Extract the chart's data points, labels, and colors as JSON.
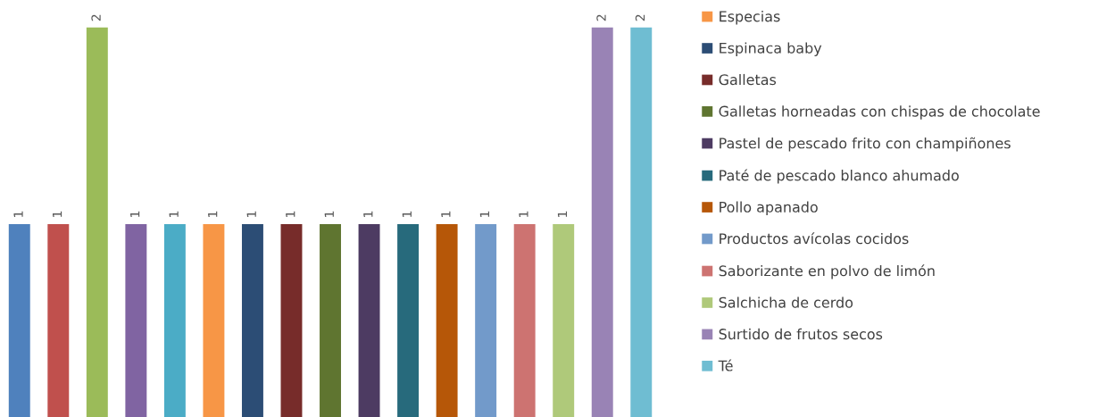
{
  "chart_data": {
    "type": "bar",
    "stacked": true,
    "categories": [
      null,
      null,
      null,
      null,
      null,
      null,
      null,
      null,
      null,
      null,
      null,
      null,
      null,
      null,
      null,
      null,
      null
    ],
    "data_labels": true,
    "legend": "right",
    "grid": false,
    "series": [
      {
        "color": "#4f81bd",
        "values": [
          1,
          null,
          null,
          null,
          null,
          null,
          null,
          null,
          null,
          null,
          null,
          null,
          null,
          null,
          null,
          null,
          null
        ]
      },
      {
        "color": "#c0504d",
        "values": [
          null,
          1,
          null,
          null,
          null,
          null,
          null,
          null,
          null,
          null,
          null,
          null,
          null,
          null,
          null,
          null,
          null
        ]
      },
      {
        "color": "#9bbb59",
        "values": [
          null,
          null,
          2,
          null,
          null,
          null,
          null,
          null,
          null,
          null,
          null,
          null,
          null,
          null,
          null,
          null,
          null
        ]
      },
      {
        "color": "#8064a2",
        "values": [
          null,
          null,
          null,
          1,
          null,
          null,
          null,
          null,
          null,
          null,
          null,
          null,
          null,
          null,
          null,
          null,
          null
        ]
      },
      {
        "color": "#4bacc6",
        "values": [
          null,
          null,
          null,
          null,
          1,
          null,
          null,
          null,
          null,
          null,
          null,
          null,
          null,
          null,
          null,
          null,
          null
        ]
      },
      {
        "name": "Especias",
        "color": "#f79646",
        "values": [
          null,
          null,
          null,
          null,
          null,
          1,
          null,
          null,
          null,
          null,
          null,
          null,
          null,
          null,
          null,
          null,
          null
        ]
      },
      {
        "name": "Espinaca baby",
        "color": "#2c4d75",
        "values": [
          null,
          null,
          null,
          null,
          null,
          null,
          1,
          null,
          null,
          null,
          null,
          null,
          null,
          null,
          null,
          null,
          null
        ]
      },
      {
        "name": "Galletas",
        "color": "#772c2a",
        "values": [
          null,
          null,
          null,
          null,
          null,
          null,
          null,
          1,
          null,
          null,
          null,
          null,
          null,
          null,
          null,
          null,
          null
        ]
      },
      {
        "name": "Galletas horneadas con chispas de chocolate",
        "color": "#5f7530",
        "values": [
          null,
          null,
          null,
          null,
          null,
          null,
          null,
          null,
          1,
          null,
          null,
          null,
          null,
          null,
          null,
          null,
          null
        ]
      },
      {
        "name": "Pastel de pescado frito con champiñones",
        "color": "#4d3b62",
        "values": [
          null,
          null,
          null,
          null,
          null,
          null,
          null,
          null,
          null,
          1,
          null,
          null,
          null,
          null,
          null,
          null,
          null
        ]
      },
      {
        "name": "Paté de pescado blanco ahumado",
        "color": "#276a7c",
        "values": [
          null,
          null,
          null,
          null,
          null,
          null,
          null,
          null,
          null,
          null,
          1,
          null,
          null,
          null,
          null,
          null,
          null
        ]
      },
      {
        "name": "Pollo apanado",
        "color": "#b65708",
        "values": [
          null,
          null,
          null,
          null,
          null,
          null,
          null,
          null,
          null,
          null,
          null,
          1,
          null,
          null,
          null,
          null,
          null
        ]
      },
      {
        "name": "Productos avícolas cocidos",
        "color": "#729aca",
        "values": [
          null,
          null,
          null,
          null,
          null,
          null,
          null,
          null,
          null,
          null,
          null,
          null,
          1,
          null,
          null,
          null,
          null
        ]
      },
      {
        "name": "Saborizante en polvo de limón",
        "color": "#cd7371",
        "values": [
          null,
          null,
          null,
          null,
          null,
          null,
          null,
          null,
          null,
          null,
          null,
          null,
          null,
          1,
          null,
          null,
          null
        ]
      },
      {
        "name": "Salchicha de cerdo",
        "color": "#afc97a",
        "values": [
          null,
          null,
          null,
          null,
          null,
          null,
          null,
          null,
          null,
          null,
          null,
          null,
          null,
          null,
          1,
          null,
          null
        ]
      },
      {
        "name": "Surtido de frutos secos",
        "color": "#9983b5",
        "values": [
          null,
          null,
          null,
          null,
          null,
          null,
          null,
          null,
          null,
          null,
          null,
          null,
          null,
          null,
          null,
          2,
          null
        ]
      },
      {
        "name": "Té",
        "color": "#6fbdd2",
        "values": [
          null,
          null,
          null,
          null,
          null,
          null,
          null,
          null,
          null,
          null,
          null,
          null,
          null,
          null,
          null,
          null,
          2
        ]
      }
    ]
  }
}
